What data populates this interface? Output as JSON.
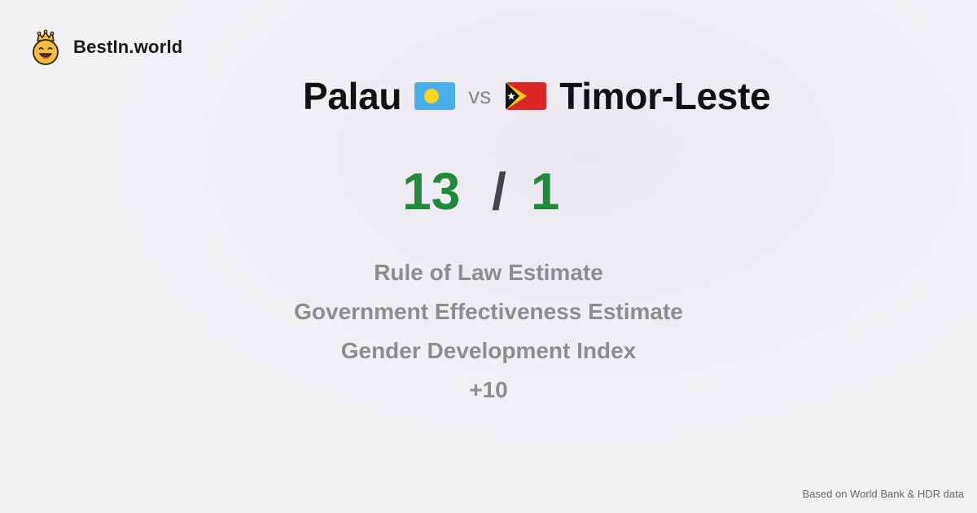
{
  "brand": {
    "name": "BestIn.world",
    "logo_icon": "crowned-smiley-icon"
  },
  "comparison": {
    "left_country": "Palau",
    "right_country": "Timor-Leste",
    "separator": "vs",
    "left_flag_icon": "palau-flag-icon",
    "right_flag_icon": "timor-leste-flag-icon"
  },
  "score": {
    "left": "13",
    "separator": "/",
    "right": "1",
    "color": "#1f8a3a"
  },
  "metrics": [
    "Rule of Law Estimate",
    "Government Effectiveness Estimate",
    "Gender Development Index"
  ],
  "more_metrics": "+10",
  "footer": {
    "source": "Based on World Bank & HDR data"
  }
}
